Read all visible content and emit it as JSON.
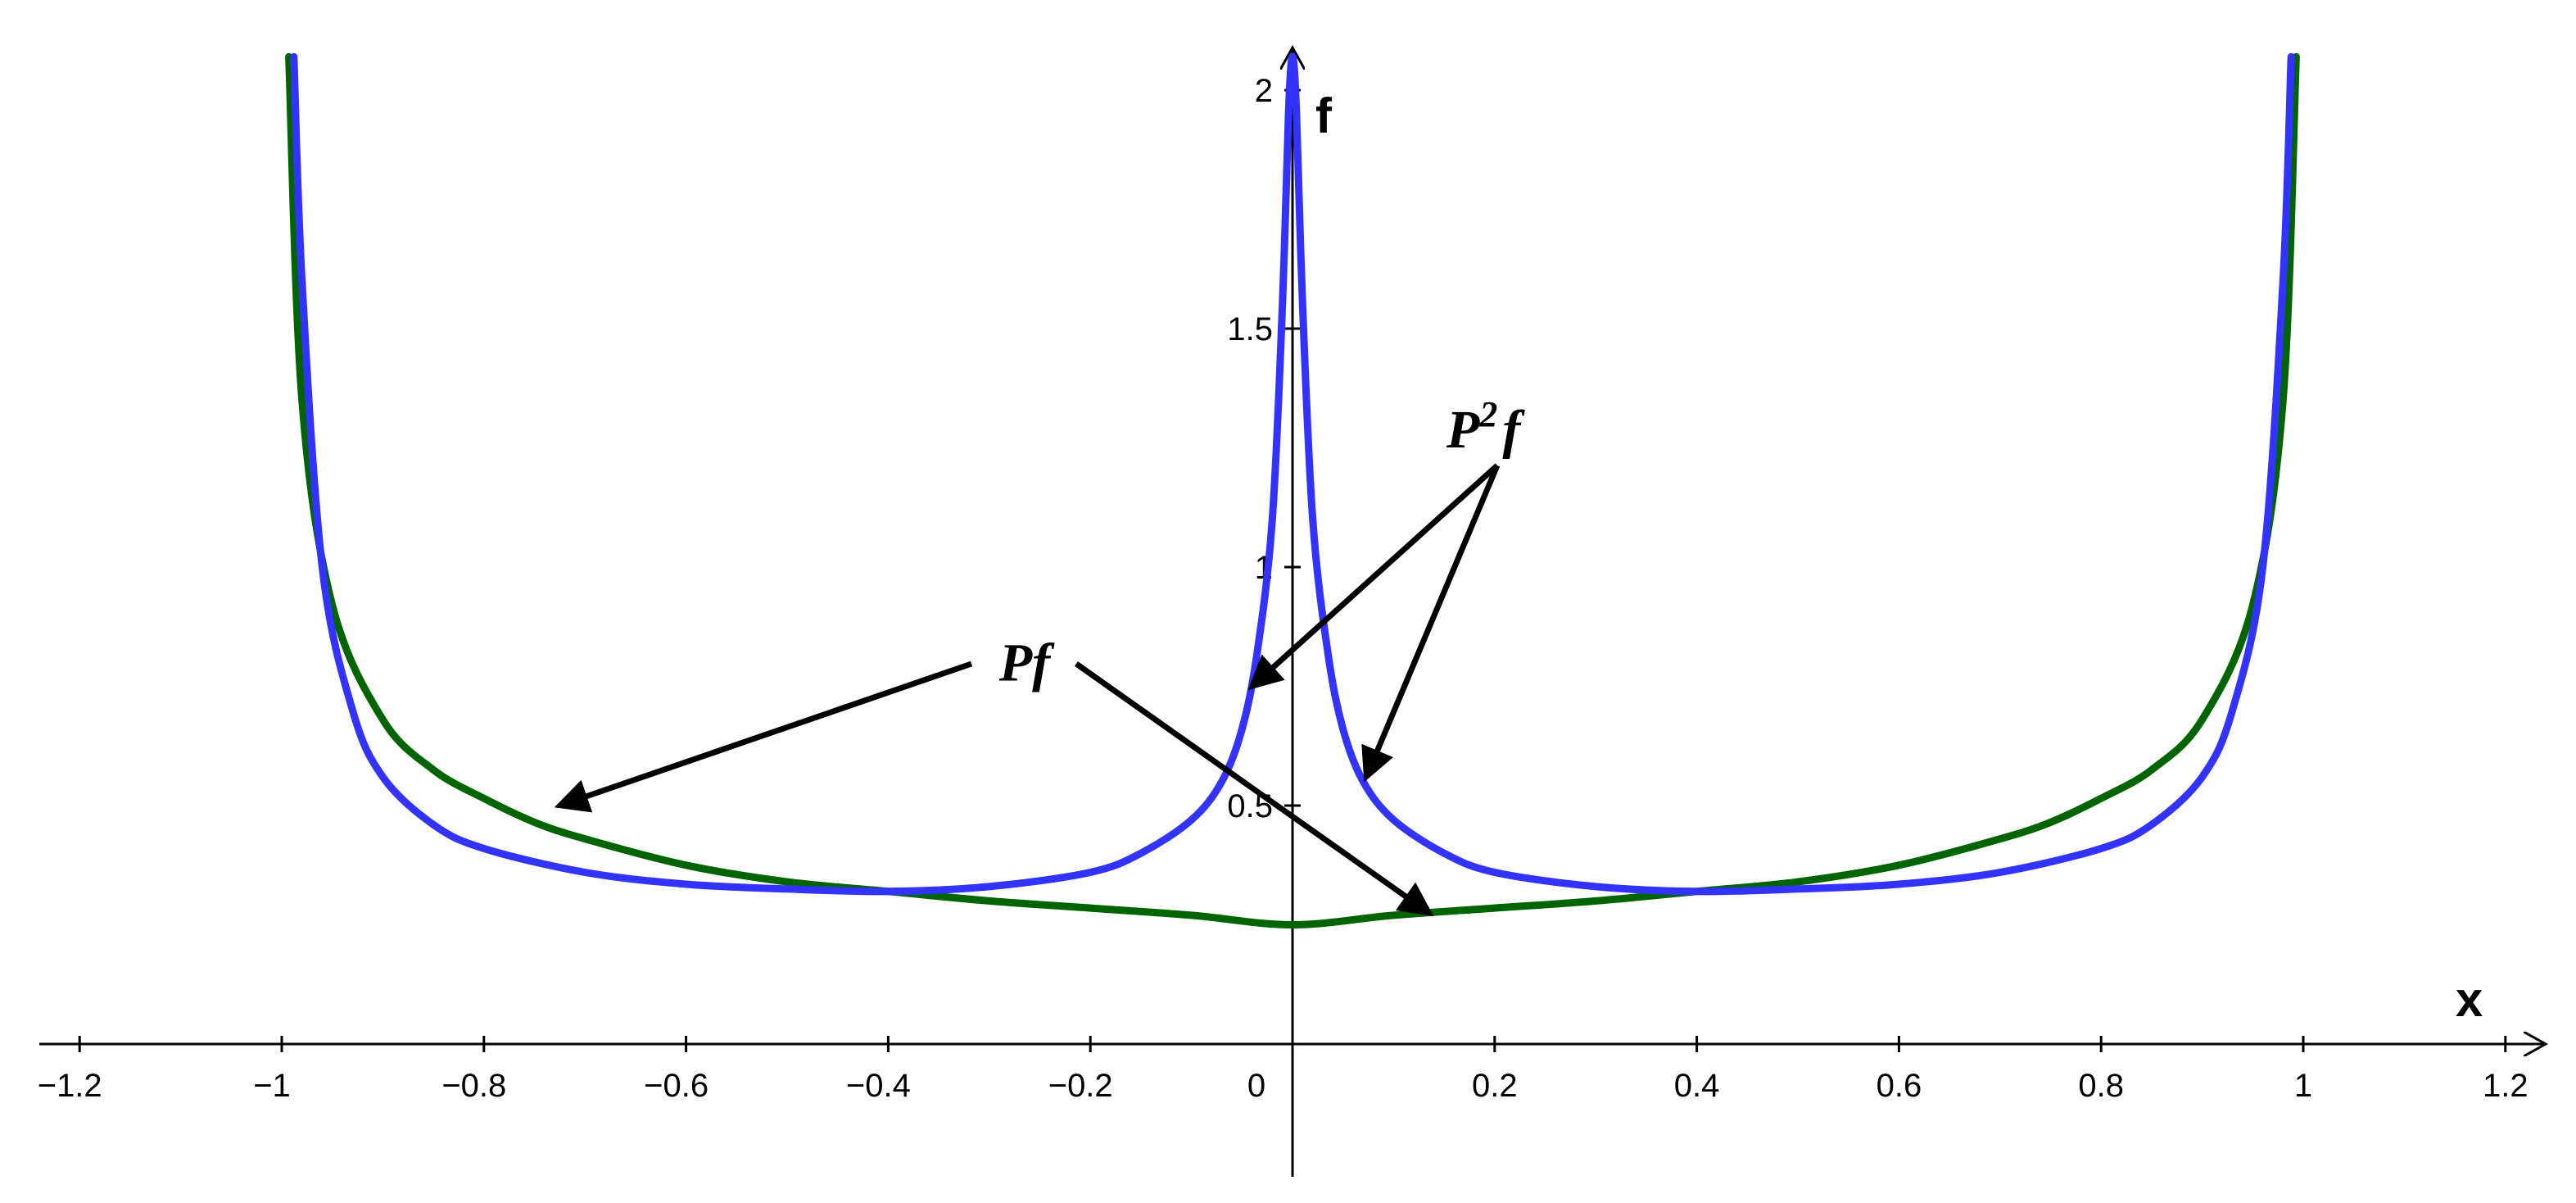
{
  "chart_data": {
    "type": "line",
    "title": "",
    "xlabel": "x",
    "ylabel": "f",
    "xlim": [
      -1.25,
      1.25
    ],
    "ylim": [
      -0.28,
      2.07
    ],
    "grid": false,
    "x_ticks": [
      -1.2,
      -1,
      -0.8,
      -0.6,
      -0.4,
      -0.2,
      0,
      0.2,
      0.4,
      0.6,
      0.8,
      1,
      1.2
    ],
    "x_tick_labels": [
      "−1.2",
      "−1",
      "−0.8",
      "−0.6",
      "−0.4",
      "−0.2",
      "0",
      "0.2",
      "0.4",
      "0.6",
      "0.8",
      "1",
      "1.2"
    ],
    "y_ticks": [
      0.5,
      1,
      1.5,
      2
    ],
    "y_tick_labels": [
      "0.5",
      "1",
      "1.5",
      "2"
    ],
    "series": [
      {
        "color": "#006400",
        "x": [
          -0.993,
          -0.98,
          -0.95,
          -0.9,
          -0.85,
          -0.8,
          -0.75,
          -0.7,
          -0.6,
          -0.5,
          -0.4,
          -0.3,
          -0.2,
          -0.1,
          0,
          0.1,
          0.2,
          0.3,
          0.4,
          0.5,
          0.6,
          0.7,
          0.75,
          0.8,
          0.85,
          0.9,
          0.95,
          0.98,
          0.993
        ],
        "values": [
          2.07,
          1.35,
          0.92,
          0.68,
          0.575,
          0.515,
          0.465,
          0.43,
          0.375,
          0.34,
          0.32,
          0.3,
          0.285,
          0.27,
          0.25,
          0.27,
          0.285,
          0.3,
          0.32,
          0.34,
          0.375,
          0.43,
          0.465,
          0.515,
          0.575,
          0.68,
          0.92,
          1.35,
          2.07
        ]
      },
      {
        "color": "#3333ff",
        "x": [
          -0.988,
          -0.98,
          -0.96,
          -0.93,
          -0.9,
          -0.85,
          -0.8,
          -0.7,
          -0.6,
          -0.5,
          -0.4,
          -0.3,
          -0.2,
          -0.15,
          -0.1,
          -0.07,
          -0.05,
          -0.035,
          -0.02,
          -0.01,
          -0.004,
          0,
          0.004,
          0.01,
          0.02,
          0.035,
          0.05,
          0.07,
          0.1,
          0.15,
          0.2,
          0.3,
          0.4,
          0.5,
          0.6,
          0.7,
          0.8,
          0.85,
          0.9,
          0.93,
          0.96,
          0.98,
          0.988
        ],
        "values": [
          2.07,
          1.6,
          1.0,
          0.7,
          0.56,
          0.46,
          0.41,
          0.36,
          0.335,
          0.325,
          0.32,
          0.33,
          0.36,
          0.4,
          0.47,
          0.55,
          0.66,
          0.82,
          1.1,
          1.55,
          1.95,
          2.07,
          1.95,
          1.55,
          1.1,
          0.82,
          0.66,
          0.55,
          0.47,
          0.4,
          0.36,
          0.33,
          0.32,
          0.325,
          0.335,
          0.36,
          0.41,
          0.46,
          0.56,
          0.7,
          1.0,
          1.6,
          2.07
        ]
      }
    ],
    "annotations": [
      {
        "text": "Pf",
        "x": -0.265,
        "y": 0.8,
        "arrow_targets": [
          [
            -0.725,
            0.5
          ],
          [
            0.135,
            0.275
          ]
        ]
      },
      {
        "text": "P",
        "superscript": "2",
        "suffix": "f",
        "x": 0.2,
        "y": 1.3,
        "arrow_targets": [
          [
            -0.04,
            0.75
          ],
          [
            0.073,
            0.56
          ]
        ]
      }
    ]
  }
}
